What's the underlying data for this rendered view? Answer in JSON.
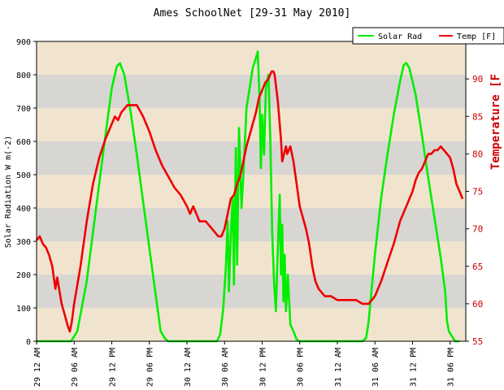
{
  "chart_data": {
    "type": "line",
    "title": "Ames SchoolNet [29-31 May 2010]",
    "ylabel": "Solar Radiation W m(-2)",
    "ylabel_right": "Temperature [F",
    "ylim": [
      0,
      900
    ],
    "ylim_right": [
      55,
      95
    ],
    "yticks": [
      "0",
      "100",
      "200",
      "300",
      "400",
      "500",
      "600",
      "700",
      "800",
      "900"
    ],
    "yticks_right": [
      "55",
      "60",
      "65",
      "70",
      "75",
      "80",
      "85",
      "90"
    ],
    "xlim": [
      0,
      66
    ],
    "xticks": [
      {
        "h": 0,
        "label": "29 12 AM"
      },
      {
        "h": 6,
        "label": "29 06 AM"
      },
      {
        "h": 12,
        "label": "29 12 PM"
      },
      {
        "h": 18,
        "label": "29 06 PM"
      },
      {
        "h": 24,
        "label": "30 12 AM"
      },
      {
        "h": 30,
        "label": "30 06 AM"
      },
      {
        "h": 36,
        "label": "30 12 PM"
      },
      {
        "h": 42,
        "label": "30 06 PM"
      },
      {
        "h": 48,
        "label": "31 12 AM"
      },
      {
        "h": 54,
        "label": "31 06 AM"
      },
      {
        "h": 60,
        "label": "31 12 PM"
      },
      {
        "h": 66,
        "label": "31 06 PM"
      }
    ],
    "legend_position": "top-right",
    "grid": "horizontal bands",
    "series": [
      {
        "name": "Solar Rad",
        "color": "#00ee00",
        "axis": "left",
        "points": [
          [
            0,
            0
          ],
          [
            5.5,
            0
          ],
          [
            6.5,
            30
          ],
          [
            8,
            180
          ],
          [
            9.5,
            400
          ],
          [
            11,
            620
          ],
          [
            12,
            760
          ],
          [
            12.8,
            825
          ],
          [
            13.3,
            835
          ],
          [
            14,
            800
          ],
          [
            15,
            690
          ],
          [
            16,
            560
          ],
          [
            17,
            420
          ],
          [
            18,
            280
          ],
          [
            19,
            140
          ],
          [
            19.8,
            30
          ],
          [
            20.5,
            8
          ],
          [
            21,
            0
          ],
          [
            28.8,
            0
          ],
          [
            29.3,
            20
          ],
          [
            29.8,
            100
          ],
          [
            30.2,
            220
          ],
          [
            30.5,
            360
          ],
          [
            30.7,
            150
          ],
          [
            31,
            320
          ],
          [
            31.3,
            430
          ],
          [
            31.5,
            170
          ],
          [
            31.8,
            580
          ],
          [
            32,
            230
          ],
          [
            32.3,
            640
          ],
          [
            32.7,
            400
          ],
          [
            33,
            500
          ],
          [
            33.5,
            700
          ],
          [
            34,
            760
          ],
          [
            34.5,
            820
          ],
          [
            35,
            850
          ],
          [
            35.3,
            870
          ],
          [
            35.6,
            720
          ],
          [
            35.8,
            520
          ],
          [
            36,
            680
          ],
          [
            36.3,
            560
          ],
          [
            36.6,
            760
          ],
          [
            37,
            800
          ],
          [
            37.3,
            610
          ],
          [
            37.6,
            330
          ],
          [
            37.9,
            180
          ],
          [
            38.2,
            90
          ],
          [
            38.5,
            280
          ],
          [
            38.8,
            440
          ],
          [
            39,
            200
          ],
          [
            39.2,
            350
          ],
          [
            39.4,
            120
          ],
          [
            39.6,
            260
          ],
          [
            39.8,
            90
          ],
          [
            40.1,
            200
          ],
          [
            40.5,
            50
          ],
          [
            41,
            30
          ],
          [
            41.5,
            5
          ],
          [
            42,
            0
          ],
          [
            52,
            0
          ],
          [
            52.6,
            10
          ],
          [
            53,
            60
          ],
          [
            54,
            260
          ],
          [
            55,
            430
          ],
          [
            56,
            560
          ],
          [
            57,
            680
          ],
          [
            58,
            780
          ],
          [
            58.6,
            830
          ],
          [
            59,
            835
          ],
          [
            59.5,
            820
          ],
          [
            60.5,
            740
          ],
          [
            61.5,
            620
          ],
          [
            62.5,
            490
          ],
          [
            63.5,
            370
          ],
          [
            64.5,
            250
          ],
          [
            65.2,
            150
          ],
          [
            65.5,
            60
          ],
          [
            65.8,
            30
          ],
          [
            66.3,
            15
          ],
          [
            66.8,
            0
          ],
          [
            67.5,
            0
          ]
        ]
      },
      {
        "name": "Temp [F]",
        "color": "#ee0000",
        "axis": "right",
        "points": [
          [
            0,
            68.5
          ],
          [
            0.5,
            69
          ],
          [
            1,
            68
          ],
          [
            1.5,
            67.5
          ],
          [
            2,
            66.5
          ],
          [
            2.5,
            65
          ],
          [
            3,
            62
          ],
          [
            3.3,
            63.5
          ],
          [
            3.6,
            62
          ],
          [
            4,
            60
          ],
          [
            4.5,
            58.5
          ],
          [
            5,
            57
          ],
          [
            5.3,
            56.3
          ],
          [
            5.6,
            57.5
          ],
          [
            6,
            60
          ],
          [
            7,
            65
          ],
          [
            8,
            71
          ],
          [
            9,
            76
          ],
          [
            10,
            79.5
          ],
          [
            11,
            82
          ],
          [
            11.5,
            83
          ],
          [
            12,
            84
          ],
          [
            12.5,
            85
          ],
          [
            13,
            84.5
          ],
          [
            13.5,
            85.5
          ],
          [
            14,
            86
          ],
          [
            14.5,
            86.5
          ],
          [
            15,
            86.5
          ],
          [
            15.5,
            86.5
          ],
          [
            16,
            86.5
          ],
          [
            17,
            85
          ],
          [
            18,
            83
          ],
          [
            19,
            80.5
          ],
          [
            20,
            78.5
          ],
          [
            21,
            77
          ],
          [
            22,
            75.5
          ],
          [
            23,
            74.5
          ],
          [
            24,
            73
          ],
          [
            24.5,
            72
          ],
          [
            25,
            73
          ],
          [
            25.5,
            72
          ],
          [
            26,
            71
          ],
          [
            27,
            71
          ],
          [
            28,
            70
          ],
          [
            29,
            69
          ],
          [
            29.5,
            69
          ],
          [
            30,
            70
          ],
          [
            30.5,
            72
          ],
          [
            31,
            74
          ],
          [
            31.5,
            74.5
          ],
          [
            32,
            76
          ],
          [
            32.5,
            77
          ],
          [
            33,
            79
          ],
          [
            33.5,
            81
          ],
          [
            34,
            82.5
          ],
          [
            34.5,
            84
          ],
          [
            35,
            85.5
          ],
          [
            35.5,
            87.5
          ],
          [
            36,
            88.5
          ],
          [
            36.5,
            89.5
          ],
          [
            37,
            90
          ],
          [
            37.5,
            91
          ],
          [
            37.8,
            91
          ],
          [
            38,
            90.5
          ],
          [
            38.5,
            87
          ],
          [
            39,
            82
          ],
          [
            39.2,
            79
          ],
          [
            39.5,
            80
          ],
          [
            39.8,
            81
          ],
          [
            40,
            80
          ],
          [
            40.5,
            81
          ],
          [
            41,
            79
          ],
          [
            41.5,
            76
          ],
          [
            42,
            73
          ],
          [
            43,
            70
          ],
          [
            43.5,
            68
          ],
          [
            44,
            65
          ],
          [
            44.5,
            63
          ],
          [
            45,
            62
          ],
          [
            46,
            61
          ],
          [
            47,
            61
          ],
          [
            48,
            60.5
          ],
          [
            49,
            60.5
          ],
          [
            50,
            60.5
          ],
          [
            51,
            60.5
          ],
          [
            52,
            60
          ],
          [
            53,
            60
          ],
          [
            53.5,
            60.5
          ],
          [
            54,
            61
          ],
          [
            55,
            63
          ],
          [
            56,
            65.5
          ],
          [
            57,
            68
          ],
          [
            58,
            71
          ],
          [
            59,
            73
          ],
          [
            60,
            75
          ],
          [
            60.5,
            76.5
          ],
          [
            61,
            77.5
          ],
          [
            61.5,
            78
          ],
          [
            62,
            79
          ],
          [
            62.5,
            80
          ],
          [
            63,
            80
          ],
          [
            63.5,
            80.5
          ],
          [
            64,
            80.5
          ],
          [
            64.5,
            81
          ],
          [
            65,
            80.5
          ],
          [
            65.5,
            80
          ],
          [
            66,
            79.5
          ],
          [
            66.5,
            78
          ],
          [
            67,
            76
          ],
          [
            67.5,
            75
          ],
          [
            68,
            74
          ]
        ]
      }
    ]
  }
}
